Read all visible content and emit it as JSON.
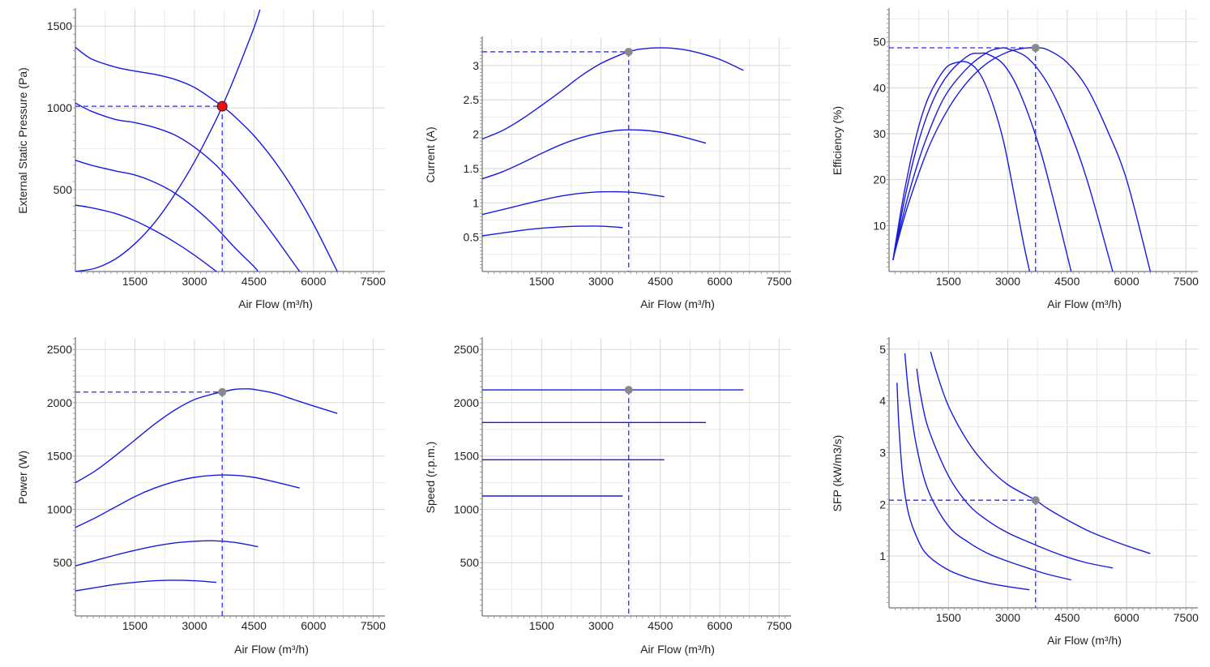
{
  "colors": {
    "curve": "#1a1adf",
    "guide": "#2b2bff",
    "operating_point": "#ee1111",
    "marker": "#8a8a8a",
    "grid": "#d6d6d6",
    "axis": "#555555"
  },
  "chart_data": [
    {
      "type": "line",
      "xlabel": "Air Flow (m³/h)",
      "ylabel": "External Static Pressure (Pa)",
      "xlim": [
        0,
        7800
      ],
      "ylim": [
        0,
        1600
      ],
      "xticks": [
        1500,
        3000,
        4500,
        6000,
        7500
      ],
      "yticks": [
        500,
        1000,
        1500
      ],
      "grid": true,
      "series": [
        {
          "x": [
            0,
            400,
            1000,
            1500,
            2000,
            2500,
            3000,
            3500,
            3700,
            4000,
            4500,
            5000,
            5500,
            6000,
            6600
          ],
          "y": [
            1370,
            1300,
            1250,
            1225,
            1205,
            1175,
            1125,
            1045,
            1010,
            950,
            830,
            680,
            500,
            290,
            0
          ]
        },
        {
          "x": [
            0,
            400,
            1000,
            1500,
            2000,
            2500,
            3000,
            3500,
            4000,
            4500,
            5000,
            5500,
            5650
          ],
          "y": [
            1030,
            980,
            930,
            910,
            880,
            835,
            760,
            660,
            530,
            380,
            220,
            50,
            0
          ]
        },
        {
          "x": [
            0,
            400,
            1000,
            1500,
            2000,
            2500,
            3000,
            3500,
            4000,
            4500,
            4600
          ],
          "y": [
            680,
            650,
            615,
            590,
            545,
            480,
            390,
            280,
            150,
            30,
            0
          ]
        },
        {
          "x": [
            0,
            400,
            1000,
            1500,
            2000,
            2500,
            3000,
            3500,
            3550
          ],
          "y": [
            405,
            390,
            355,
            310,
            250,
            180,
            100,
            10,
            0
          ]
        },
        {
          "x": [
            0,
            500,
            1000,
            1500,
            2000,
            2500,
            3000,
            3500,
            3700,
            4000,
            4500,
            4650
          ],
          "y": [
            0,
            20,
            75,
            170,
            300,
            470,
            670,
            905,
            1010,
            1180,
            1490,
            1600
          ]
        }
      ],
      "operating_point": {
        "x": 3700,
        "y": 1010
      }
    },
    {
      "type": "line",
      "xlabel": "Air Flow (m³/h)",
      "ylabel": "Current (A)",
      "xlim": [
        0,
        7800
      ],
      "ylim": [
        0,
        3.4
      ],
      "xticks": [
        1500,
        3000,
        4500,
        6000,
        7500
      ],
      "yticks": [
        0.5,
        1,
        1.5,
        2,
        2.5,
        3
      ],
      "grid": true,
      "series": [
        {
          "x": [
            0,
            500,
            1000,
            1500,
            2000,
            2500,
            3000,
            3500,
            3700,
            4000,
            4500,
            5000,
            5500,
            6000,
            6600
          ],
          "y": [
            1.93,
            2.05,
            2.22,
            2.42,
            2.63,
            2.85,
            3.03,
            3.16,
            3.2,
            3.24,
            3.26,
            3.24,
            3.18,
            3.09,
            2.93
          ]
        },
        {
          "x": [
            0,
            500,
            1000,
            1500,
            2000,
            2500,
            3000,
            3500,
            4000,
            4500,
            5000,
            5650
          ],
          "y": [
            1.35,
            1.45,
            1.58,
            1.72,
            1.85,
            1.95,
            2.02,
            2.06,
            2.06,
            2.03,
            1.97,
            1.87
          ]
        },
        {
          "x": [
            0,
            500,
            1000,
            1500,
            2000,
            2500,
            3000,
            3500,
            4000,
            4600
          ],
          "y": [
            0.83,
            0.9,
            0.97,
            1.04,
            1.1,
            1.14,
            1.16,
            1.16,
            1.14,
            1.09
          ]
        },
        {
          "x": [
            0,
            500,
            1000,
            1500,
            2000,
            2500,
            3000,
            3550
          ],
          "y": [
            0.52,
            0.56,
            0.6,
            0.63,
            0.65,
            0.66,
            0.66,
            0.64
          ]
        }
      ],
      "operating_point": {
        "x": 3700,
        "y": 3.2
      }
    },
    {
      "type": "line",
      "xlabel": "Air Flow (m³/h)",
      "ylabel": "Efficiency (%)",
      "xlim": [
        0,
        7800
      ],
      "ylim": [
        0,
        57
      ],
      "xticks": [
        1500,
        3000,
        4500,
        6000,
        7500
      ],
      "yticks": [
        10,
        20,
        30,
        40,
        50
      ],
      "grid": true,
      "series": [
        {
          "x": [
            100,
            200,
            400,
            700,
            1000,
            1400,
            1700,
            2000,
            2300,
            2600,
            2900,
            3200,
            3400,
            3550
          ],
          "y": [
            2.5,
            8,
            18,
            30,
            38,
            44,
            45.5,
            45.5,
            43,
            37,
            28,
            15,
            6,
            0
          ]
        },
        {
          "x": [
            100,
            200,
            400,
            700,
            1100,
            1500,
            2000,
            2300,
            2500,
            2900,
            3300,
            3800,
            4200,
            4600
          ],
          "y": [
            2.5,
            7,
            16,
            27,
            37,
            43,
            47,
            47.5,
            47.3,
            45,
            39,
            27,
            14,
            0
          ]
        },
        {
          "x": [
            100,
            200,
            500,
            900,
            1400,
            2000,
            2500,
            2800,
            3000,
            3500,
            4000,
            4500,
            5000,
            5650
          ],
          "y": [
            2.5,
            6.5,
            17,
            28,
            38,
            44.5,
            47.8,
            48.6,
            48.5,
            46.5,
            41,
            32,
            20,
            0
          ]
        },
        {
          "x": [
            100,
            200,
            500,
            1000,
            1500,
            2000,
            2500,
            3000,
            3400,
            3700,
            4000,
            4500,
            5000,
            5500,
            6000,
            6600
          ],
          "y": [
            2.5,
            6,
            15,
            27,
            35.5,
            41.5,
            45.5,
            47.8,
            48.6,
            48.7,
            48.3,
            45.5,
            40,
            31,
            20,
            0
          ]
        }
      ],
      "operating_point": {
        "x": 3700,
        "y": 48.7
      }
    },
    {
      "type": "line",
      "xlabel": "Air Flow (m³/h)",
      "ylabel": "Power (W)",
      "xlim": [
        0,
        7800
      ],
      "ylim": [
        0,
        2600
      ],
      "xticks": [
        1500,
        3000,
        4500,
        6000,
        7500
      ],
      "yticks": [
        500,
        1000,
        1500,
        2000,
        2500
      ],
      "grid": true,
      "series": [
        {
          "x": [
            0,
            500,
            1000,
            1500,
            2000,
            2500,
            3000,
            3500,
            3700,
            4000,
            4300,
            4500,
            5000,
            5500,
            6000,
            6600
          ],
          "y": [
            1250,
            1360,
            1500,
            1650,
            1800,
            1930,
            2030,
            2085,
            2100,
            2125,
            2130,
            2125,
            2090,
            2030,
            1970,
            1900
          ]
        },
        {
          "x": [
            0,
            500,
            1000,
            1500,
            2000,
            2500,
            3000,
            3500,
            4000,
            4500,
            5000,
            5650
          ],
          "y": [
            830,
            920,
            1020,
            1120,
            1200,
            1260,
            1300,
            1320,
            1320,
            1300,
            1260,
            1200
          ]
        },
        {
          "x": [
            0,
            500,
            1000,
            1500,
            2000,
            2500,
            3000,
            3500,
            4000,
            4600
          ],
          "y": [
            470,
            520,
            570,
            615,
            655,
            685,
            700,
            705,
            690,
            650
          ]
        },
        {
          "x": [
            0,
            500,
            1000,
            1500,
            2000,
            2500,
            3000,
            3550
          ],
          "y": [
            235,
            265,
            295,
            315,
            330,
            335,
            330,
            315
          ]
        }
      ],
      "operating_point": {
        "x": 3700,
        "y": 2100
      }
    },
    {
      "type": "line",
      "xlabel": "Air Flow (m³/h)",
      "ylabel": "Speed (r.p.m.)",
      "xlim": [
        0,
        7800
      ],
      "ylim": [
        0,
        2600
      ],
      "xticks": [
        1500,
        3000,
        4500,
        6000,
        7500
      ],
      "yticks": [
        500,
        1000,
        1500,
        2000,
        2500
      ],
      "grid": true,
      "series": [
        {
          "x": [
            0,
            6600
          ],
          "y": [
            2120,
            2120
          ]
        },
        {
          "x": [
            0,
            5650
          ],
          "y": [
            1815,
            1815
          ]
        },
        {
          "x": [
            0,
            4600
          ],
          "y": [
            1465,
            1465
          ]
        },
        {
          "x": [
            0,
            3550
          ],
          "y": [
            1125,
            1125
          ]
        }
      ],
      "operating_point": {
        "x": 3700,
        "y": 2120
      }
    },
    {
      "type": "line",
      "xlabel": "Air Flow (m³/h)",
      "ylabel": "SFP (kW/m3/s)",
      "xlim": [
        0,
        7800
      ],
      "ylim": [
        0,
        5.2
      ],
      "xticks": [
        1500,
        3000,
        4500,
        6000,
        7500
      ],
      "yticks": [
        1,
        2,
        3,
        4,
        5
      ],
      "grid": true,
      "series": [
        {
          "x": [
            1050,
            1200,
            1500,
            2000,
            2500,
            3000,
            3700,
            4000,
            4500,
            5000,
            5500,
            6000,
            6600
          ],
          "y": [
            4.95,
            4.55,
            3.9,
            3.2,
            2.72,
            2.38,
            2.08,
            1.92,
            1.7,
            1.5,
            1.34,
            1.2,
            1.05
          ]
        },
        {
          "x": [
            700,
            800,
            1000,
            1500,
            2000,
            2500,
            3000,
            3500,
            4000,
            4500,
            5000,
            5650
          ],
          "y": [
            4.62,
            4.1,
            3.45,
            2.55,
            2.0,
            1.68,
            1.45,
            1.28,
            1.12,
            0.98,
            0.87,
            0.77
          ]
        },
        {
          "x": [
            400,
            500,
            700,
            1000,
            1500,
            2000,
            2500,
            3000,
            3500,
            4000,
            4600
          ],
          "y": [
            4.92,
            4.1,
            3.1,
            2.25,
            1.58,
            1.27,
            1.05,
            0.9,
            0.77,
            0.65,
            0.54
          ]
        },
        {
          "x": [
            200,
            250,
            350,
            500,
            750,
            1000,
            1500,
            2000,
            2500,
            3000,
            3550
          ],
          "y": [
            4.35,
            3.5,
            2.5,
            1.8,
            1.28,
            1.0,
            0.73,
            0.58,
            0.48,
            0.41,
            0.35
          ]
        }
      ],
      "operating_point": {
        "x": 3700,
        "y": 2.08
      }
    }
  ]
}
